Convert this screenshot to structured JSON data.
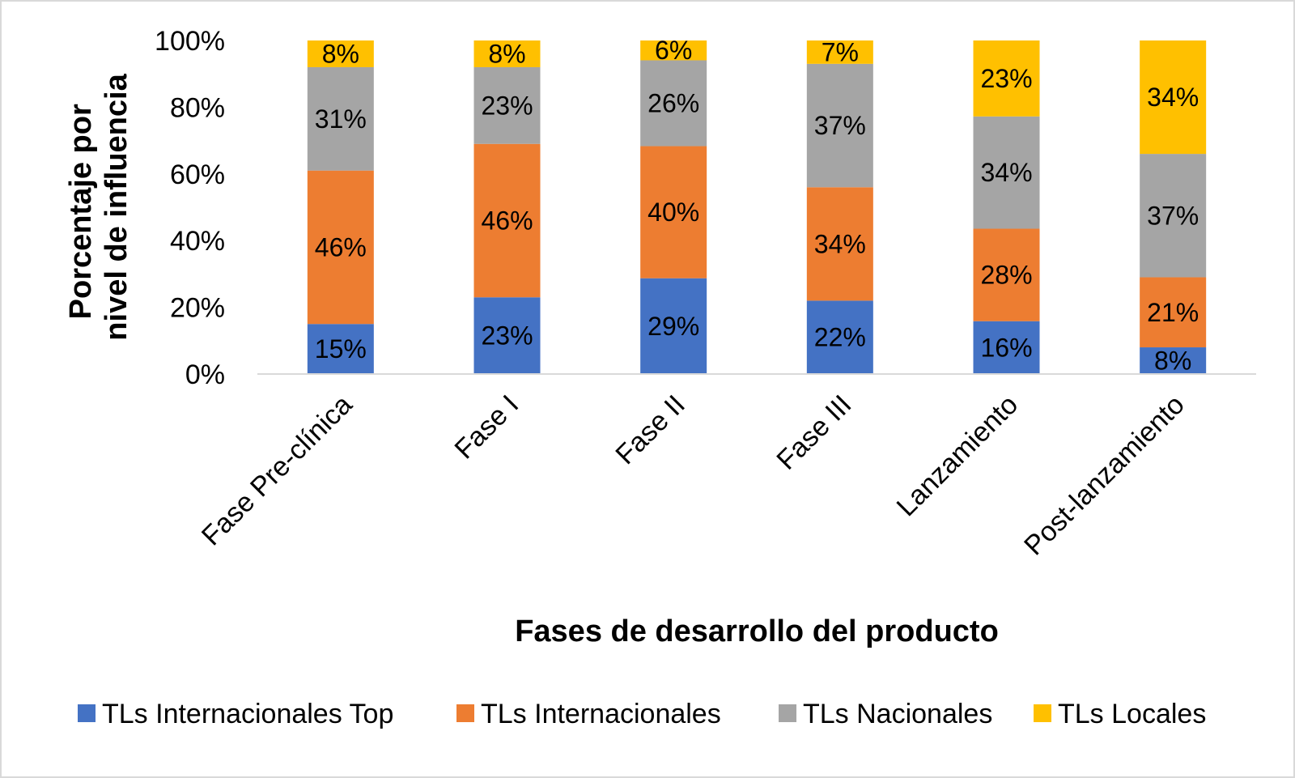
{
  "chart_data": {
    "type": "bar",
    "stacked": true,
    "percent": true,
    "title": "",
    "xlabel": "Fases de desarrollo del producto",
    "ylabel_lines": [
      "Porcentaje por",
      "nivel de influencia"
    ],
    "ylim": [
      0,
      100
    ],
    "yticks": [
      "0%",
      "20%",
      "40%",
      "60%",
      "80%",
      "100%"
    ],
    "categories": [
      "Fase Pre-clínica",
      "Fase I",
      "Fase II",
      "Fase III",
      "Lanzamiento",
      "Post-lanzamiento"
    ],
    "series": [
      {
        "name": "TLs Internacionales Top",
        "color": "#4472C4",
        "values": [
          15,
          23,
          29,
          22,
          16,
          8
        ]
      },
      {
        "name": "TLs Internacionales",
        "color": "#ED7D31",
        "values": [
          46,
          46,
          40,
          34,
          28,
          21
        ]
      },
      {
        "name": "TLs Nacionales",
        "color": "#A5A5A5",
        "values": [
          31,
          23,
          26,
          37,
          34,
          37
        ]
      },
      {
        "name": "TLs Locales",
        "color": "#FFC000",
        "values": [
          8,
          8,
          6,
          7,
          23,
          34
        ]
      }
    ],
    "grid": false,
    "legend_position": "bottom"
  }
}
